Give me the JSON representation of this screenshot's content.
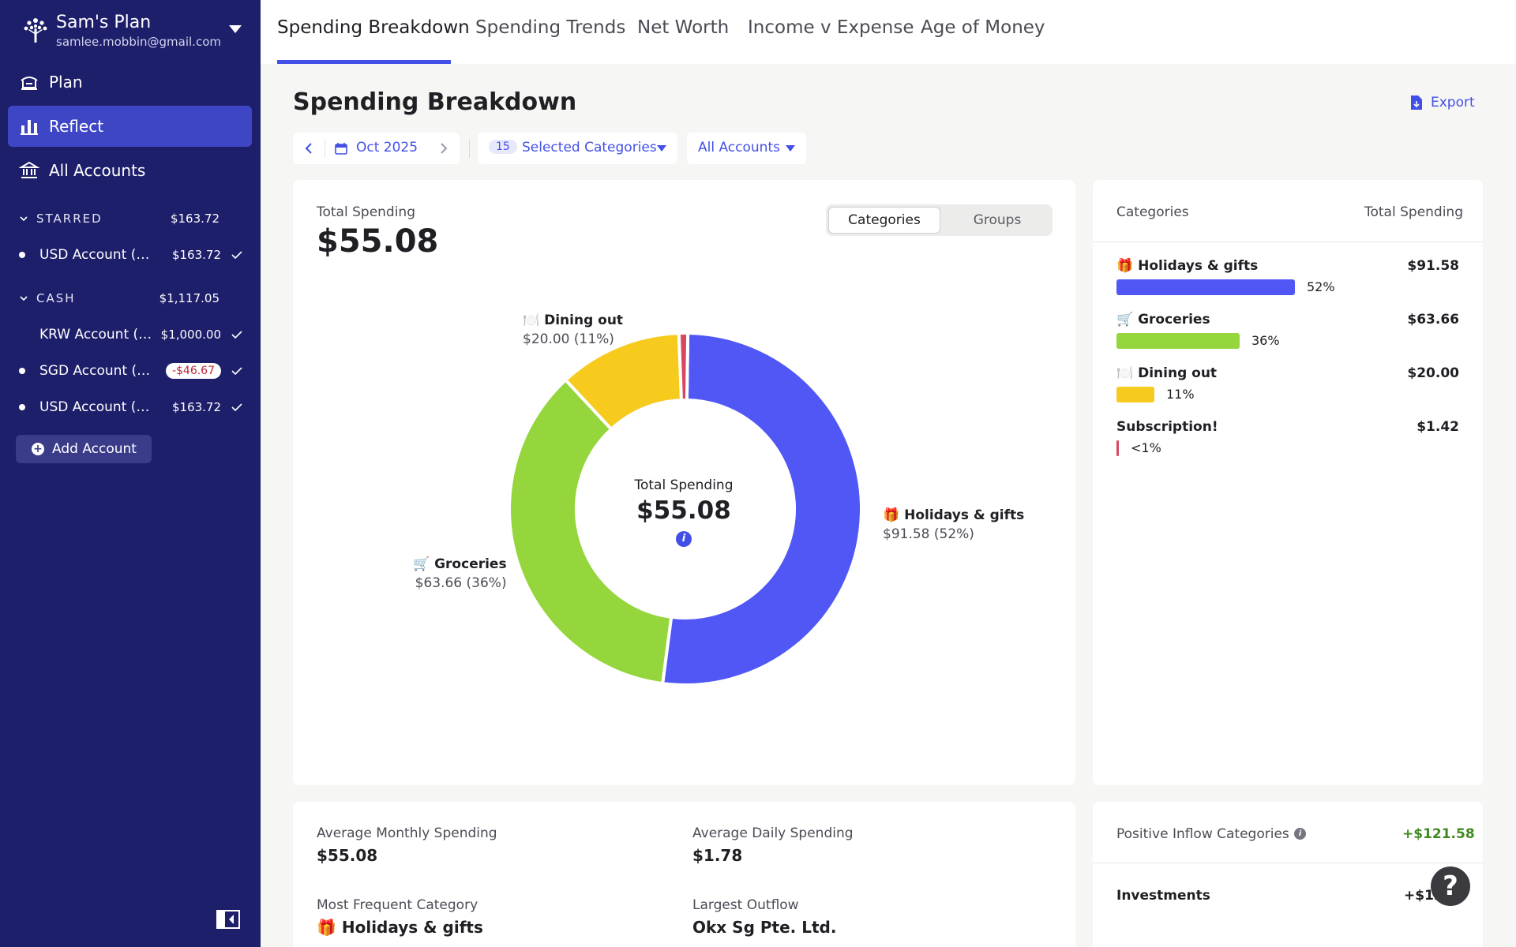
{
  "sidebar": {
    "plan_name": "Sam's Plan",
    "email": "samlee.mobbin@gmail.com",
    "nav": [
      {
        "label": "Plan",
        "icon": "plan-icon"
      },
      {
        "label": "Reflect",
        "icon": "bar-chart-icon"
      },
      {
        "label": "All Accounts",
        "icon": "bank-icon"
      }
    ],
    "groups": [
      {
        "label": "STARRED",
        "total": "$163.72",
        "accounts": [
          {
            "name": "USD Account (US...",
            "balance": "$163.72"
          }
        ]
      },
      {
        "label": "CASH",
        "total": "$1,117.05",
        "accounts": [
          {
            "name": "KRW Account (K...",
            "balance": "$1,000.00"
          },
          {
            "name": "SGD Account (S...",
            "balance": "-$46.67"
          },
          {
            "name": "USD Account (US...",
            "balance": "$163.72"
          }
        ]
      }
    ],
    "add_account": "Add Account"
  },
  "tabs": [
    "Spending Breakdown",
    "Spending Trends",
    "Net Worth",
    "Income v Expense",
    "Age of Money"
  ],
  "page": {
    "title": "Spending Breakdown",
    "export": "Export",
    "month": "Oct 2025",
    "category_count": "15",
    "categories_filter": "Selected Categories",
    "accounts_filter": "All Accounts"
  },
  "summary": {
    "total_label": "Total Spending",
    "total_value": "$55.08",
    "toggle": [
      "Categories",
      "Groups"
    ],
    "center_label": "Total Spending",
    "center_value": "$55.08"
  },
  "chart_data": {
    "type": "pie",
    "categories": [
      "Holidays & gifts",
      "Groceries",
      "Dining out",
      "Subscription!"
    ],
    "values": [
      91.58,
      63.66,
      20.0,
      1.42
    ],
    "colors": [
      "#5157f5",
      "#94d63c",
      "#f6cb1e",
      "#d9475e"
    ],
    "slice_labels": [
      {
        "emoji": "🎁",
        "name": "Holidays & gifts",
        "value": "$91.58 (52%)"
      },
      {
        "emoji": "🛒",
        "name": "Groceries",
        "value": "$63.66 (36%)"
      },
      {
        "emoji": "🍽️",
        "name": "Dining out",
        "value": "$20.00 (11%)"
      }
    ]
  },
  "breakdown": {
    "header_left": "Categories",
    "header_right": "Total Spending",
    "rows": [
      {
        "emoji": "🎁",
        "name": "Holidays & gifts",
        "amount": "$91.58",
        "pct": "52%",
        "share": 0.52,
        "color": "#5157f5"
      },
      {
        "emoji": "🛒",
        "name": "Groceries",
        "amount": "$63.66",
        "pct": "36%",
        "share": 0.36,
        "color": "#94d63c"
      },
      {
        "emoji": "🍽️",
        "name": "Dining out",
        "amount": "$20.00",
        "pct": "11%",
        "share": 0.11,
        "color": "#f6cb1e"
      },
      {
        "emoji": "",
        "name": "Subscription!",
        "amount": "$1.42",
        "pct": "<1%",
        "share": 0.008,
        "color": "#d9475e"
      }
    ]
  },
  "stats": {
    "avg_monthly_label": "Average Monthly Spending",
    "avg_monthly_value": "$55.08",
    "avg_daily_label": "Average Daily Spending",
    "avg_daily_value": "$1.78",
    "frequent_label": "Most Frequent Category",
    "frequent_value": "🎁 Holidays & gifts",
    "outflow_label": "Largest Outflow",
    "outflow_value": "Okx Sg Pte. Ltd."
  },
  "inflow": {
    "label": "Positive Inflow Categories",
    "total": "+$121.58",
    "row_name": "Investments",
    "row_value": "+$121.58"
  },
  "help": "?"
}
